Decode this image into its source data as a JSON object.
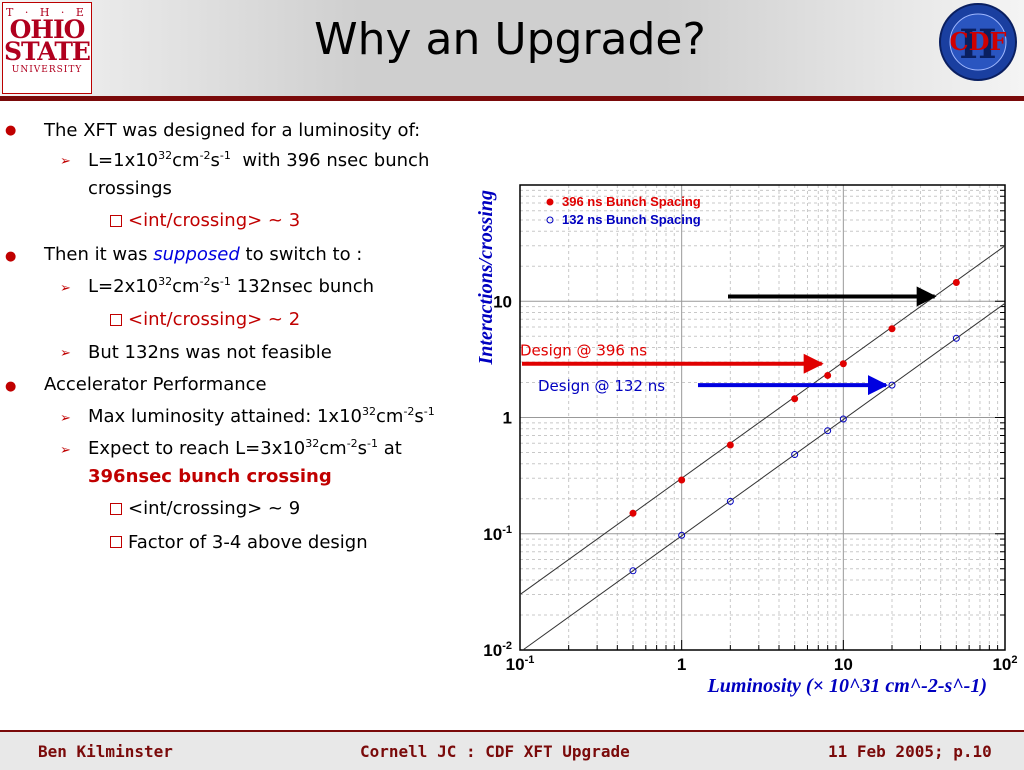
{
  "header": {
    "title": "Why an Upgrade?",
    "osu_logo": {
      "the": "T · H · E",
      "line1": "OHIO",
      "line2": "STATE",
      "line3": "UNIVERSITY"
    },
    "cdf_logo": {
      "text": "CDF",
      "numeral": "II"
    }
  },
  "bullets": {
    "b1": "The XFT was designed for a luminosity of:",
    "b1_1_pre": "L=1x10",
    "b1_1_exp1": "32",
    "b1_1_mid": "cm",
    "b1_1_exp2": "-2",
    "b1_1_mid2": "s",
    "b1_1_exp3": "-1",
    "b1_1_post": "with 396 nsec bunch",
    "b1_1_cont": "crossings",
    "b1_1_1": "<int/crossing> ~ 3",
    "b2_pre": "Then it was",
    "b2_em": "supposed",
    "b2_post": "to switch to :",
    "b2_1_pre": "L=2x10",
    "b2_1_exp1": "32",
    "b2_1_mid": "cm",
    "b2_1_exp2": "-2",
    "b2_1_mid2": "s",
    "b2_1_exp3": "-1",
    "b2_1_post": "132nsec bunch",
    "b2_1_1": "<int/crossing> ~ 2",
    "b2_2": "But 132ns was not feasible",
    "b3": "Accelerator Performance",
    "b3_1_pre": "Max luminosity attained: 1x10",
    "b3_1_exp1": "32",
    "b3_1_mid": "cm",
    "b3_1_exp2": "-2",
    "b3_1_mid2": "s",
    "b3_1_exp3": "-1",
    "b3_2_pre": "Expect to reach L=3x10",
    "b3_2_exp1": "32",
    "b3_2_mid": "cm",
    "b3_2_exp2": "-2",
    "b3_2_mid2": "s",
    "b3_2_exp3": "-1",
    "b3_2_post": "at",
    "b3_2_cont": "396nsec bunch crossing",
    "b3_2_1": "<int/crossing> ~ 9",
    "b3_2_2": "Factor of 3-4 above design"
  },
  "chart_data": {
    "type": "scatter",
    "xscale": "log",
    "yscale": "log",
    "xlim": [
      0.1,
      100
    ],
    "ylim": [
      0.01,
      100
    ],
    "xlabel": "Luminosity (× 10^31 cm^-2-s^-1)",
    "ylabel": "Interactions/crossing",
    "x_ticks": [
      {
        "v": 0.1,
        "base": "10",
        "exp": "-1"
      },
      {
        "v": 1,
        "base": "1",
        "exp": ""
      },
      {
        "v": 10,
        "base": "10",
        "exp": ""
      },
      {
        "v": 100,
        "base": "10",
        "exp": "2"
      }
    ],
    "y_ticks": [
      {
        "v": 0.01,
        "base": "10",
        "exp": "-2"
      },
      {
        "v": 0.1,
        "base": "10",
        "exp": "-1"
      },
      {
        "v": 1,
        "base": "1",
        "exp": ""
      },
      {
        "v": 10,
        "base": "10",
        "exp": ""
      }
    ],
    "grid": true,
    "legend_position": "top-left",
    "series": [
      {
        "name": "396 ns Bunch Spacing",
        "marker": "filled",
        "color": "#e00000",
        "x": [
          0.5,
          1,
          2,
          5,
          8,
          10,
          20,
          50
        ],
        "y": [
          0.15,
          0.29,
          0.58,
          1.45,
          2.3,
          2.9,
          5.8,
          14.5
        ]
      },
      {
        "name": "132 ns Bunch Spacing",
        "marker": "open",
        "color": "#0000c0",
        "x": [
          0.5,
          1,
          2,
          5,
          8,
          10,
          20,
          50
        ],
        "y": [
          0.048,
          0.097,
          0.19,
          0.48,
          0.77,
          0.97,
          1.9,
          4.8
        ]
      }
    ],
    "annotations": [
      {
        "text": "Design @ 396 ns",
        "color": "#e00000",
        "arrow_color": "#e00000",
        "target_x": 8,
        "target_y": 2.9
      },
      {
        "text": "Design @ 132 ns",
        "color": "#0000c0",
        "arrow_color": "#0000e0",
        "target_x": 20,
        "target_y": 1.9
      },
      {
        "text": "",
        "arrow_color": "#000000",
        "target_x": 40,
        "target_y": 11
      }
    ]
  },
  "footer": {
    "left": "Ben Kilminster",
    "center": "Cornell JC : CDF XFT Upgrade",
    "right": "11 Feb 2005; p.10"
  },
  "colors": {
    "accent": "#7a0a0a",
    "red": "#c00000",
    "blue": "#0000e0"
  }
}
